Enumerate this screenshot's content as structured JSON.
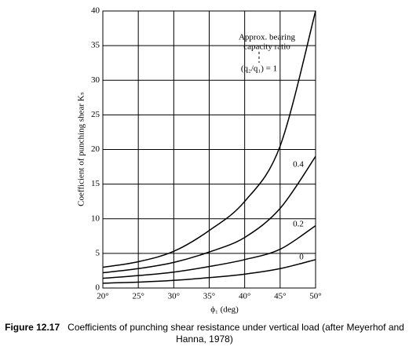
{
  "chart_data": {
    "type": "line",
    "x_label": "ϕ₁ (deg)",
    "y_label": "Coefficient of punching shear Kₛ",
    "annotation": [
      "Approx. bearing",
      "capacity ratio"
    ],
    "x": [
      20,
      25,
      30,
      35,
      40,
      45,
      50
    ],
    "series": [
      {
        "name": "(q₂/q₁) = 1",
        "color": "#000000",
        "values": [
          3.0,
          3.8,
          5.3,
          8.3,
          12.5,
          20.5,
          40
        ]
      },
      {
        "name": "0.4",
        "color": "#000000",
        "values": [
          2.2,
          2.8,
          3.7,
          5.2,
          7.3,
          11.5,
          19
        ]
      },
      {
        "name": "0.2",
        "color": "#000000",
        "values": [
          1.4,
          1.8,
          2.3,
          3.1,
          4.1,
          5.6,
          9
        ]
      },
      {
        "name": "0",
        "color": "#000000",
        "values": [
          0.7,
          0.85,
          1.1,
          1.5,
          2.0,
          2.8,
          4.1
        ]
      }
    ],
    "xlim": [
      20,
      50
    ],
    "xticks": [
      {
        "value": 20,
        "label": "20°"
      },
      {
        "value": 25,
        "label": "25°"
      },
      {
        "value": 30,
        "label": "30°"
      },
      {
        "value": 35,
        "label": "35°"
      },
      {
        "value": 40,
        "label": "40°"
      },
      {
        "value": 45,
        "label": "45°"
      },
      {
        "value": 50,
        "label": "50°"
      }
    ],
    "ylim": [
      0,
      40
    ],
    "yticks": [
      0,
      5,
      10,
      15,
      20,
      25,
      30,
      35,
      40
    ],
    "grid": true
  },
  "caption": {
    "label": "Figure 12.17",
    "text": "Coefficients of punching shear resistance under vertical load (after Meyerhof and Hanna, 1978)"
  }
}
